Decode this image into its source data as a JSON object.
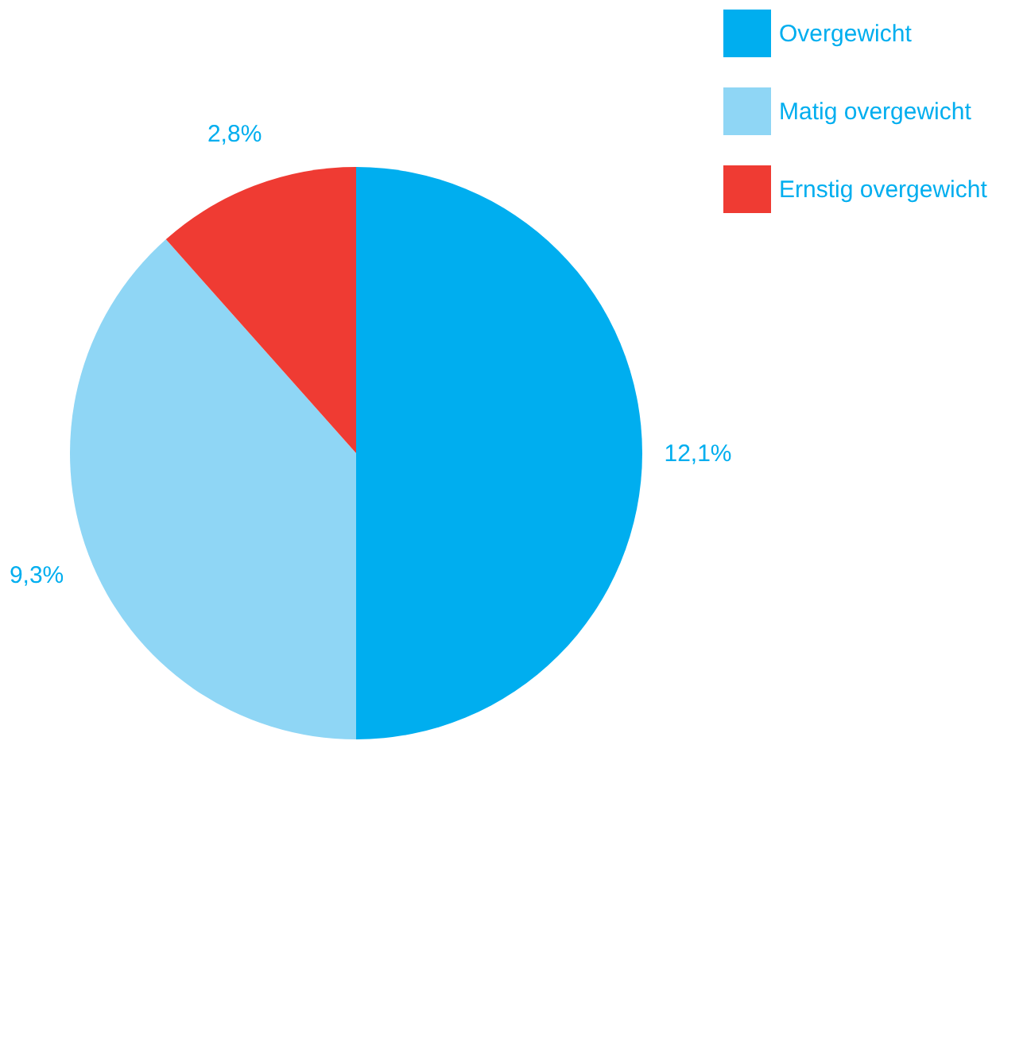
{
  "chart_data": {
    "type": "pie",
    "categories": [
      "Overgewicht",
      "Matig overgewicht",
      "Ernstig overgewicht"
    ],
    "values": [
      12.1,
      9.3,
      2.8
    ],
    "colors": [
      "#00aeef",
      "#8fd6f5",
      "#ef3b33"
    ],
    "value_labels": [
      "12,1%",
      "9,3%",
      "2,8%"
    ],
    "legend": "right"
  }
}
